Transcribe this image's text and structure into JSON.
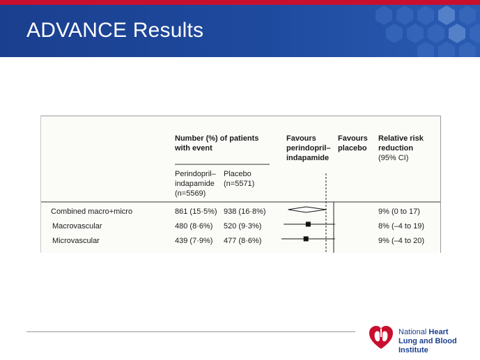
{
  "slide": {
    "title": "ADVANCE Results",
    "colors": {
      "banner": "#1e4a9e",
      "stripe": "#c8102e",
      "logo_red": "#c8102e",
      "logo_blue": "#1b3f8f"
    }
  },
  "table": {
    "header_patients": [
      "Number (%) of patients",
      "with event"
    ],
    "col_treat": [
      "Perindopril–",
      "indapamide",
      "(n=5569)"
    ],
    "col_placebo": [
      "Placebo",
      "(n=5571)"
    ],
    "favours_treat": [
      "Favours",
      "perindopril–",
      "indapamide"
    ],
    "favours_placebo": [
      "Favours",
      "placebo"
    ],
    "rrr_header": [
      "Relative risk",
      "reduction",
      "(95% CI)"
    ]
  },
  "chart_data": {
    "type": "forest",
    "reference_value": 1.0,
    "rows": [
      {
        "label": "Combined macro+micro",
        "treatment": "861 (15·5%)",
        "placebo": "938 (16·8%)",
        "rrr": "9% (0 to 17)",
        "hr": 0.91,
        "ci": [
          0.83,
          1.0
        ],
        "marker": "diamond"
      },
      {
        "label": "Macrovascular",
        "treatment": "480 (8·6%)",
        "placebo": "520 (9·3%)",
        "rrr": "8% (–4 to 19)",
        "hr": 0.92,
        "ci": [
          0.81,
          1.04
        ],
        "marker": "square"
      },
      {
        "label": "Microvascular",
        "treatment": "439 (7·9%)",
        "placebo": "477 (8·6%)",
        "rrr": "9% (–4 to 20)",
        "hr": 0.91,
        "ci": [
          0.8,
          1.04
        ],
        "marker": "square"
      }
    ]
  },
  "logo": {
    "line1_a": "National ",
    "line1_b": "Heart",
    "line2": "Lung and Blood Institute",
    "icon": "heart-lung-icon"
  }
}
